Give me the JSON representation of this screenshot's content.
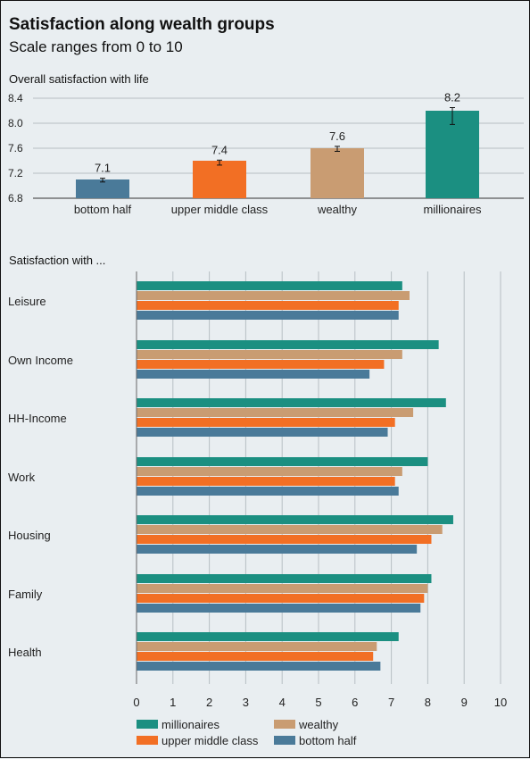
{
  "title": "Satisfaction along wealth groups",
  "subtitle": "Scale ranges from 0 to 10",
  "colors": {
    "millionaires": "#1b8f81",
    "wealthy": "#c99c72",
    "upper_middle_class": "#f26f24",
    "bottom_half": "#4a7a99",
    "grid": "#b7bfc4",
    "background": "#e9eef1"
  },
  "chart_data": [
    {
      "type": "bar",
      "title": "Overall satisfaction with life",
      "categories": [
        "bottom half",
        "upper middle class",
        "wealthy",
        "millionaires"
      ],
      "values": [
        7.1,
        7.4,
        7.6,
        8.2
      ],
      "value_labels": [
        "7.1",
        "7.4",
        "7.6",
        "8.2"
      ],
      "error_bars": [
        [
          7.06,
          7.12
        ],
        [
          7.33,
          7.41
        ],
        [
          7.55,
          7.63
        ],
        [
          7.98,
          8.25
        ]
      ],
      "bar_colors": [
        "#4a7a99",
        "#f26f24",
        "#c99c72",
        "#1b8f81"
      ],
      "ylim": [
        6.8,
        8.4
      ],
      "yticks": [
        "6.8",
        "7.2",
        "7.6",
        "8.0",
        "8.4"
      ],
      "grid": true
    },
    {
      "type": "bar",
      "orientation": "horizontal",
      "title": "Satisfaction with ...",
      "categories": [
        "Leisure",
        "Own Income",
        "HH-Income",
        "Work",
        "Housing",
        "Family",
        "Health"
      ],
      "series": [
        {
          "name": "millionaires",
          "color": "#1b8f81",
          "values": [
            7.3,
            8.3,
            8.5,
            8.0,
            8.7,
            8.1,
            7.2
          ]
        },
        {
          "name": "wealthy",
          "color": "#c99c72",
          "values": [
            7.5,
            7.3,
            7.6,
            7.3,
            8.4,
            8.0,
            6.6
          ]
        },
        {
          "name": "upper middle class",
          "color": "#f26f24",
          "values": [
            7.2,
            6.8,
            7.1,
            7.1,
            8.1,
            7.9,
            6.5
          ]
        },
        {
          "name": "bottom half",
          "color": "#4a7a99",
          "values": [
            7.2,
            6.4,
            6.9,
            7.2,
            7.7,
            7.8,
            6.7
          ]
        }
      ],
      "xlim": [
        0,
        10
      ],
      "xticks": [
        "0",
        "1",
        "2",
        "3",
        "4",
        "5",
        "6",
        "7",
        "8",
        "9",
        "10"
      ],
      "grid": true,
      "legend_position": "bottom-left"
    }
  ]
}
